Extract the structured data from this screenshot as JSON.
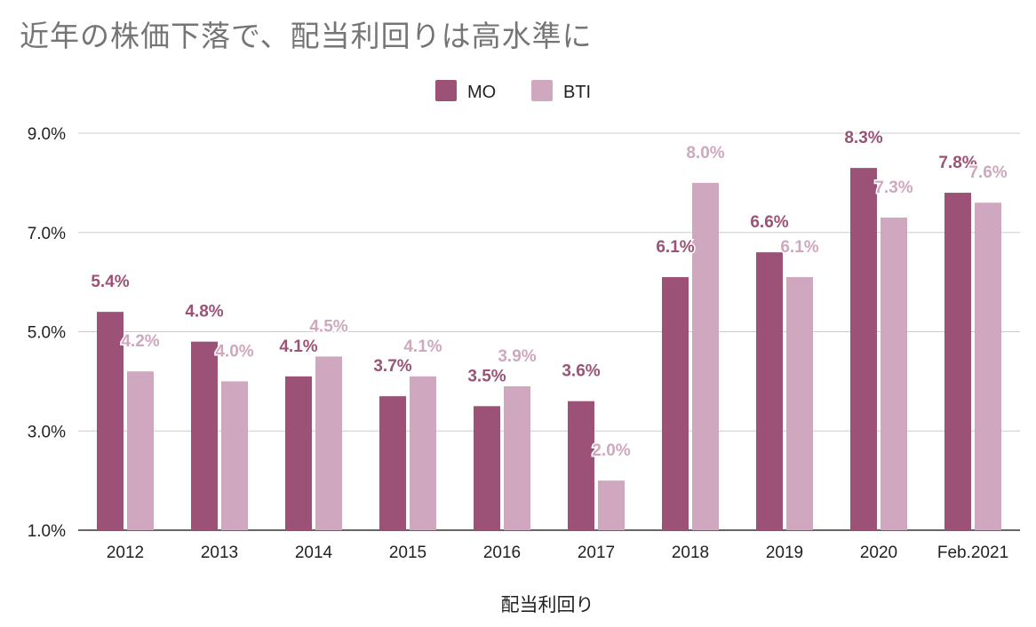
{
  "chart_data": {
    "type": "bar",
    "title": "近年の株価下落で、配当利回りは高水準に",
    "xlabel": "配当利回り",
    "ylabel": "",
    "categories": [
      "2012",
      "2013",
      "2014",
      "2015",
      "2016",
      "2017",
      "2018",
      "2019",
      "2020",
      "Feb.2021"
    ],
    "series": [
      {
        "name": "MO",
        "color": "#9b5276",
        "values": [
          5.4,
          4.8,
          4.1,
          3.7,
          3.5,
          3.6,
          6.1,
          6.6,
          8.3,
          7.8
        ],
        "labels": [
          "5.4%",
          "4.8%",
          "4.1%",
          "3.7%",
          "3.5%",
          "3.6%",
          "6.1%",
          "6.6%",
          "8.3%",
          "7.8%"
        ]
      },
      {
        "name": "BTI",
        "color": "#cfa8c0",
        "values": [
          4.2,
          4.0,
          4.5,
          4.1,
          3.9,
          2.0,
          8.0,
          6.1,
          7.3,
          7.6
        ],
        "labels": [
          "4.2%",
          "4.0%",
          "4.5%",
          "4.1%",
          "3.9%",
          "2.0%",
          "8.0%",
          "6.1%",
          "7.3%",
          "7.6%"
        ]
      }
    ],
    "ylim": [
      1.0,
      9.0
    ],
    "yticks": [
      1.0,
      3.0,
      5.0,
      7.0,
      9.0
    ],
    "ytick_labels": [
      "1.0%",
      "3.0%",
      "5.0%",
      "7.0%",
      "9.0%"
    ],
    "grid": true,
    "legend": "top-center"
  }
}
